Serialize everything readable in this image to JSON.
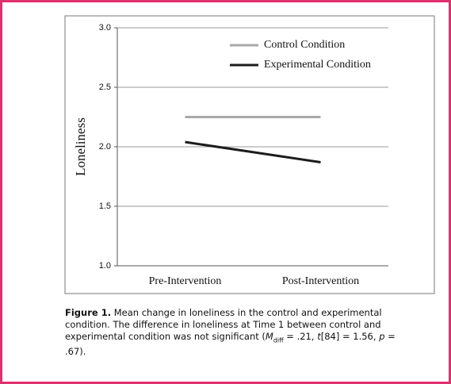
{
  "chart_data": {
    "type": "line",
    "categories": [
      "Pre-Intervention",
      "Post-Intervention"
    ],
    "series": [
      {
        "name": "Control Condition",
        "color": "#a8a8a8",
        "values": [
          2.25,
          2.25
        ]
      },
      {
        "name": "Experimental Condition",
        "color": "#1c1c1c",
        "values": [
          2.04,
          1.87
        ]
      }
    ],
    "y_label": "Loneliness",
    "ylim": [
      1.0,
      3.0
    ],
    "yticks": [
      {
        "value": 1.0,
        "label": "1.0"
      },
      {
        "value": 1.5,
        "label": "1.5"
      },
      {
        "value": 2.0,
        "label": "2.0"
      },
      {
        "value": 2.5,
        "label": "2.5"
      },
      {
        "value": 3.0,
        "label": "3.0"
      }
    ],
    "grid": true,
    "legend": "upper right"
  },
  "caption": [
    {
      "text": "Figure 1.",
      "style": "bold"
    },
    {
      "text": " Mean change in loneliness in the control and experimental condition. The difference in loneliness at Time 1 between control and experimental condition was not significant (",
      "style": "normal"
    },
    {
      "text": "M",
      "style": "italic"
    },
    {
      "text": "diff",
      "style": "subscript"
    },
    {
      "text": " = .21, ",
      "style": "normal"
    },
    {
      "text": "t",
      "style": "italic"
    },
    {
      "text": "[84] = 1.56, ",
      "style": "normal"
    },
    {
      "text": "p",
      "style": "italic"
    },
    {
      "text": " = .67).",
      "style": "normal"
    }
  ]
}
